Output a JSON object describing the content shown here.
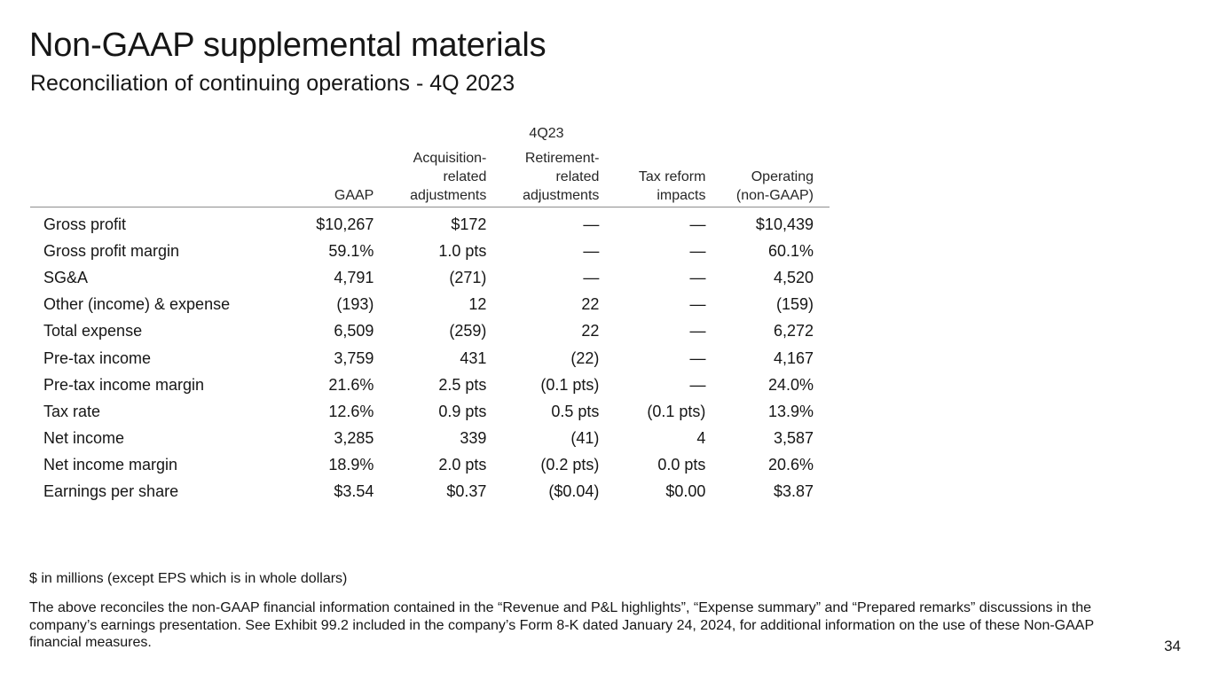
{
  "title": "Non-GAAP supplemental materials",
  "subtitle": "Reconciliation of continuing operations - 4Q 2023",
  "table": {
    "period": "4Q23",
    "headers": [
      "",
      "GAAP",
      "Acquisition-\nrelated\nadjustments",
      "Retirement-\nrelated\nadjustments",
      "Tax reform\nimpacts",
      "Operating\n(non-GAAP)"
    ],
    "rows": [
      [
        "Gross profit",
        "$10,267",
        "$172",
        "—",
        "—",
        "$10,439"
      ],
      [
        "Gross profit margin",
        "59.1%",
        "1.0 pts",
        "—",
        "—",
        "60.1%"
      ],
      [
        "SG&A",
        "4,791",
        "(271)",
        "—",
        "—",
        "4,520"
      ],
      [
        "Other (income) & expense",
        "(193)",
        "12",
        "22",
        "—",
        "(159)"
      ],
      [
        "Total expense",
        "6,509",
        "(259)",
        "22",
        "—",
        "6,272"
      ],
      [
        "Pre-tax income",
        "3,759",
        "431",
        "(22)",
        "—",
        "4,167"
      ],
      [
        "Pre-tax income margin",
        "21.6%",
        "2.5 pts",
        "(0.1 pts)",
        "—",
        "24.0%"
      ],
      [
        "Tax rate",
        "12.6%",
        "0.9 pts",
        "0.5 pts",
        "(0.1 pts)",
        "13.9%"
      ],
      [
        "Net income",
        "3,285",
        "339",
        "(41)",
        "4",
        "3,587"
      ],
      [
        "Net income margin",
        "18.9%",
        "2.0 pts",
        "(0.2 pts)",
        "0.0 pts",
        "20.6%"
      ],
      [
        "Earnings per share",
        "$3.54",
        "$0.37",
        "($0.04)",
        "$0.00",
        "$3.87"
      ]
    ]
  },
  "footnotes": {
    "units": "$ in millions (except EPS which is in whole dollars)",
    "disclaimer": "The above reconciles the non-GAAP financial information contained in the “Revenue and P&L highlights”, “Expense summary” and “Prepared remarks” discussions in the company’s earnings presentation. See Exhibit 99.2 included in the company’s Form 8-K dated January 24, 2024, for additional information on the use of these Non-GAAP financial measures."
  },
  "page_number": "34"
}
